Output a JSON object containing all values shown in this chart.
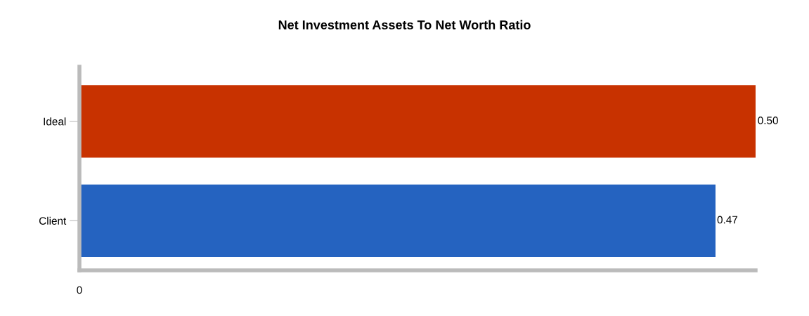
{
  "chart_data": {
    "type": "bar",
    "title": "Net Investment Assets To Net Worth Ratio",
    "orientation": "horizontal",
    "categories": [
      "Ideal",
      "Client"
    ],
    "values": [
      0.5,
      0.47
    ],
    "value_labels": [
      "0.50",
      "0.47"
    ],
    "colors": [
      "#c83200",
      "#2563c0"
    ],
    "annotations": [
      "0"
    ],
    "grid": false,
    "legend": false
  }
}
